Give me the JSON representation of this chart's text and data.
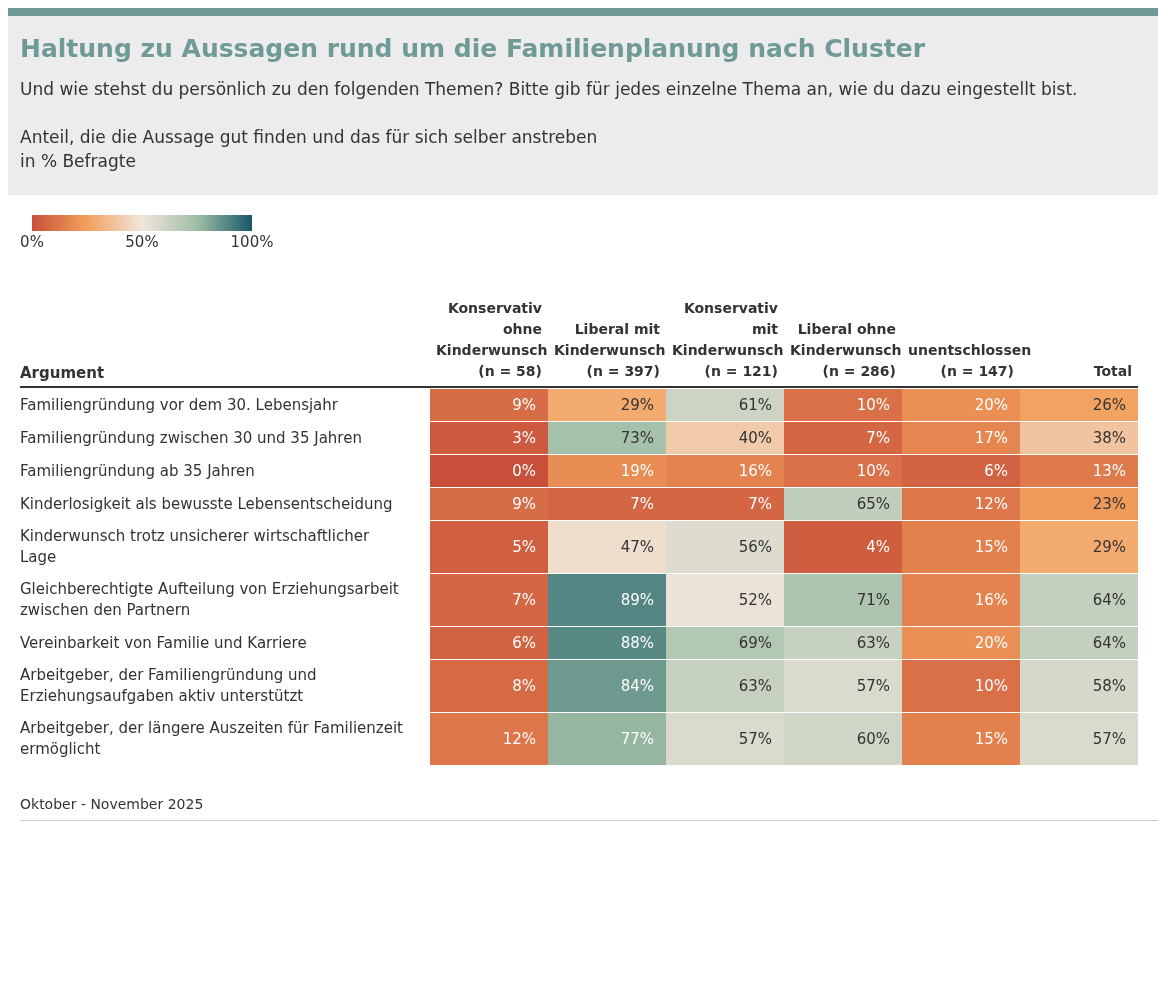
{
  "chart_data": {
    "type": "heatmap",
    "title": "Haltung zu Aussagen rund um die Familienplanung nach Cluster",
    "subtitle": "Und wie stehst du persönlich zu den folgenden Themen? Bitte gib für jedes einzelne Thema an, wie du dazu eingestellt bist.\n\nAnteil, die die Aussage gut finden und das für sich selber anstreben\nin % Befragte",
    "ylabel": "Argument",
    "categories": [
      "Konservativ ohne Kinderwunsch (n = 58)",
      "Liberal mit Kinderwunsch (n = 397)",
      "Konservativ mit Kinderwunsch (n = 121)",
      "Liberal ohne Kinderwunsch (n = 286)",
      "unentschlossen (n = 147)",
      "Total"
    ],
    "y_categories": [
      "Familiengründung vor dem 30. Lebensjahr",
      "Familiengründung zwischen 30 und 35 Jahren",
      "Familiengründung ab 35 Jahren",
      "Kinderlosigkeit als bewusste Lebensentscheidung",
      "Kinderwunsch trotz unsicherer wirtschaftlicher Lage",
      "Gleichberechtigte Aufteilung von Erziehungsarbeit zwischen den Partnern",
      "Vereinbarkeit von Familie und Karriere",
      "Arbeitgeber, der Familiengründung und Erziehungsaufgaben aktiv unterstützt",
      "Arbeitgeber, der längere Auszeiten für Familienzeit ermöglicht"
    ],
    "cells": [
      [
        9,
        29,
        61,
        10,
        20,
        26
      ],
      [
        3,
        73,
        40,
        7,
        17,
        38
      ],
      [
        0,
        19,
        16,
        10,
        6,
        13
      ],
      [
        9,
        7,
        7,
        65,
        12,
        23
      ],
      [
        5,
        47,
        56,
        4,
        15,
        29
      ],
      [
        7,
        89,
        52,
        71,
        16,
        64
      ],
      [
        6,
        88,
        69,
        63,
        20,
        64
      ],
      [
        8,
        84,
        63,
        57,
        10,
        58
      ],
      [
        12,
        77,
        57,
        60,
        15,
        57
      ]
    ],
    "cell_labels": [
      [
        "9%",
        "29%",
        "61%",
        "10%",
        "20%",
        "26%"
      ],
      [
        "3%",
        "73%",
        "40%",
        "7%",
        "17%",
        "38%"
      ],
      [
        "0%",
        "19%",
        "16%",
        "10%",
        "6%",
        "13%"
      ],
      [
        "9%",
        "7%",
        "7%",
        "65%",
        "12%",
        "23%"
      ],
      [
        "5%",
        "47%",
        "56%",
        "4%",
        "15%",
        "29%"
      ],
      [
        "7%",
        "89%",
        "52%",
        "71%",
        "16%",
        "64%"
      ],
      [
        "6%",
        "88%",
        "69%",
        "63%",
        "20%",
        "64%"
      ],
      [
        "8%",
        "84%",
        "63%",
        "57%",
        "10%",
        "58%"
      ],
      [
        "12%",
        "77%",
        "57%",
        "60%",
        "15%",
        "57%"
      ]
    ],
    "clim": [
      0,
      100
    ],
    "cticks": [
      {
        "value": 0,
        "label": "0%"
      },
      {
        "value": 50,
        "label": "50%"
      },
      {
        "value": 100,
        "label": "100%"
      }
    ],
    "annotations": [
      "Oktober - November 2025"
    ]
  }
}
